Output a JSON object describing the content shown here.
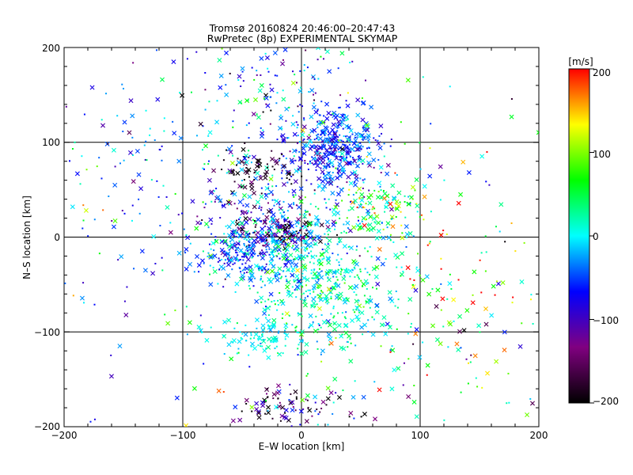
{
  "chart_data": {
    "type": "scatter",
    "title": "Tromsø 20160824 20:46:00–20:47:43",
    "subtitle": "RwPretec (8p) EXPERIMENTAL SKYMAP",
    "xlabel": "E–W location [km]",
    "ylabel": "N–S location [km]",
    "xlim": [
      -200,
      200
    ],
    "ylim": [
      -200,
      200
    ],
    "xticks": [
      "−200",
      "−100",
      "0",
      "100",
      "200"
    ],
    "yticks": [
      "−200",
      "−100",
      "0",
      "100",
      "200"
    ],
    "grid": true,
    "marker_styles": [
      "x",
      "dot"
    ],
    "colorbar": {
      "unit": "[m/s]",
      "range": [
        -200,
        200
      ],
      "ticks": [
        "200",
        "100",
        "0",
        "−100",
        "−200"
      ],
      "colors": [
        "#000000",
        "#800080",
        "#0000ff",
        "#00ffff",
        "#00ff00",
        "#ffff00",
        "#ff0000"
      ]
    },
    "clusters": [
      {
        "center": [
          28,
          90
        ],
        "spread": [
          20,
          22
        ],
        "velocity": -55,
        "velocity_spread": 35,
        "count": 420
      },
      {
        "center": [
          -40,
          15
        ],
        "spread": [
          25,
          25
        ],
        "velocity": -70,
        "velocity_spread": 60,
        "count": 220
      },
      {
        "center": [
          -15,
          5
        ],
        "spread": [
          18,
          8
        ],
        "velocity": -140,
        "velocity_spread": 60,
        "count": 120
      },
      {
        "center": [
          -50,
          -20
        ],
        "spread": [
          20,
          12
        ],
        "velocity": -45,
        "velocity_spread": 25,
        "count": 140
      },
      {
        "center": [
          0,
          -30
        ],
        "spread": [
          25,
          30
        ],
        "velocity": 0,
        "velocity_spread": 35,
        "count": 220
      },
      {
        "center": [
          25,
          -60
        ],
        "spread": [
          35,
          45
        ],
        "velocity": 20,
        "velocity_spread": 35,
        "count": 380
      },
      {
        "center": [
          -30,
          -105
        ],
        "spread": [
          20,
          8
        ],
        "velocity": 0,
        "velocity_spread": 15,
        "count": 80
      },
      {
        "center": [
          -40,
          70
        ],
        "spread": [
          20,
          10
        ],
        "velocity": -190,
        "velocity_spread": 15,
        "count": 60
      },
      {
        "center": [
          60,
          30
        ],
        "spread": [
          20,
          15
        ],
        "velocity": 60,
        "velocity_spread": 60,
        "count": 110
      },
      {
        "center": [
          -20,
          150
        ],
        "spread": [
          30,
          30
        ],
        "velocity": -40,
        "velocity_spread": 70,
        "count": 130
      },
      {
        "center": [
          -120,
          80
        ],
        "spread": [
          50,
          60
        ],
        "velocity": -50,
        "velocity_spread": 40,
        "count": 120
      },
      {
        "center": [
          140,
          -70
        ],
        "spread": [
          40,
          70
        ],
        "velocity": 90,
        "velocity_spread": 120,
        "count": 120
      },
      {
        "center": [
          -10,
          -180
        ],
        "spread": [
          25,
          12
        ],
        "velocity": -150,
        "velocity_spread": 60,
        "count": 90
      },
      {
        "center": [
          0,
          0
        ],
        "spread": [
          140,
          140
        ],
        "velocity": 0,
        "velocity_spread": 80,
        "count": 320
      }
    ]
  }
}
